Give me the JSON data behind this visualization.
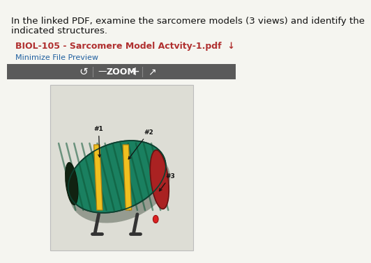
{
  "bg_color": "#f5f5f0",
  "text_line1": "In the linked PDF, examine the sarcomere models (3 views) and identify the",
  "text_line2": "indicated structures.",
  "link_text": "BIOL-105 - Sarcomere Model Actvity-1.pdf  ↓",
  "minimize_text": "Minimize File Preview",
  "toolbar_bg": "#5a5a5a",
  "toolbar_text": "ZOOM",
  "label1": "#1",
  "label2": "#2",
  "label3": "#3",
  "body_font_size": 9.5,
  "link_font_size": 9.0,
  "minimize_font_size": 8.0
}
